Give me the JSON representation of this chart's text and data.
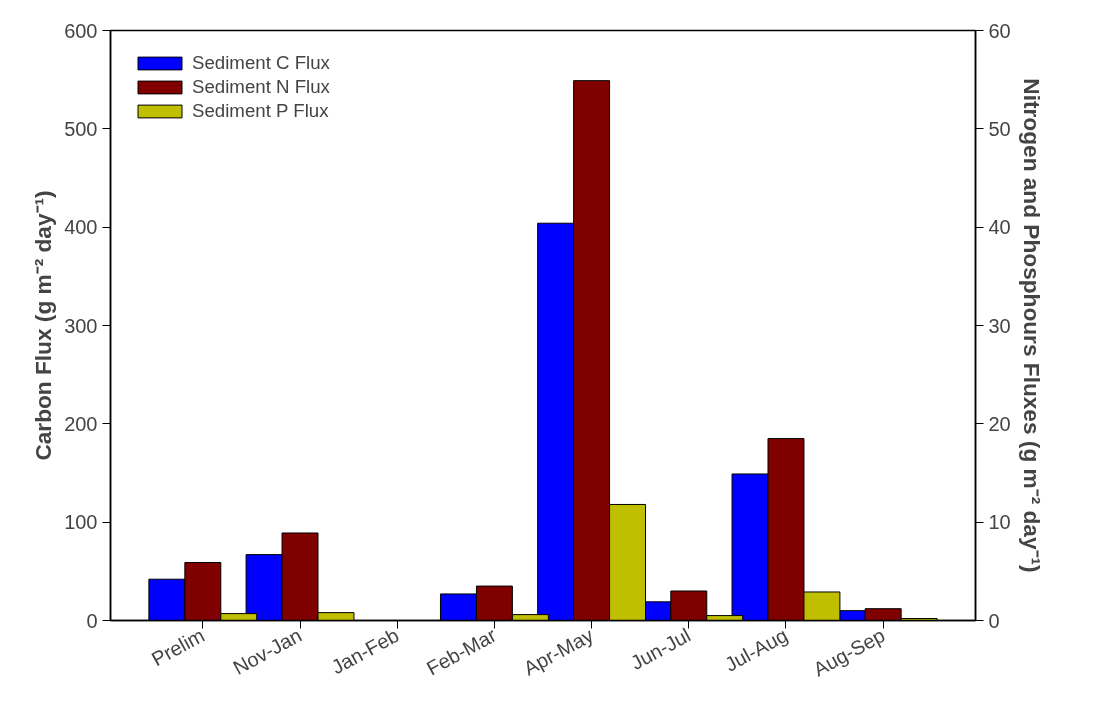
{
  "chart_data": {
    "type": "bar",
    "categories": [
      "Prelim",
      "Nov-Jan",
      "Jan-Feb",
      "Feb-Mar",
      "Apr-May",
      "Jun-Jul",
      "Jul-Aug",
      "Aug-Sep"
    ],
    "series": [
      {
        "name": "Sediment C Flux",
        "color": "#0000ff",
        "values": [
          42,
          67,
          null,
          27,
          404,
          19,
          149,
          10
        ]
      },
      {
        "name": "Sediment N Flux",
        "color": "#800000",
        "axis": "y2",
        "values": [
          5.9,
          8.9,
          null,
          3.5,
          54.9,
          3.0,
          18.5,
          1.2
        ]
      },
      {
        "name": "Sediment P Flux",
        "color": "#bfbf00",
        "axis": "y2",
        "values": [
          0.7,
          0.8,
          null,
          0.6,
          11.8,
          0.5,
          2.9,
          0.2
        ]
      }
    ],
    "ylabel": "Carbon Flux (g m⁻² day⁻¹)",
    "y2label": "Nitrogen and Phosphours Fluxes (g m⁻² day⁻¹)",
    "ylim": [
      0,
      600
    ],
    "yticks": [
      0,
      100,
      200,
      300,
      400,
      500,
      600
    ],
    "y2lim": [
      0,
      60
    ],
    "y2ticks": [
      0,
      10,
      20,
      30,
      40,
      50,
      60
    ],
    "legend": "top left",
    "grid": false
  }
}
